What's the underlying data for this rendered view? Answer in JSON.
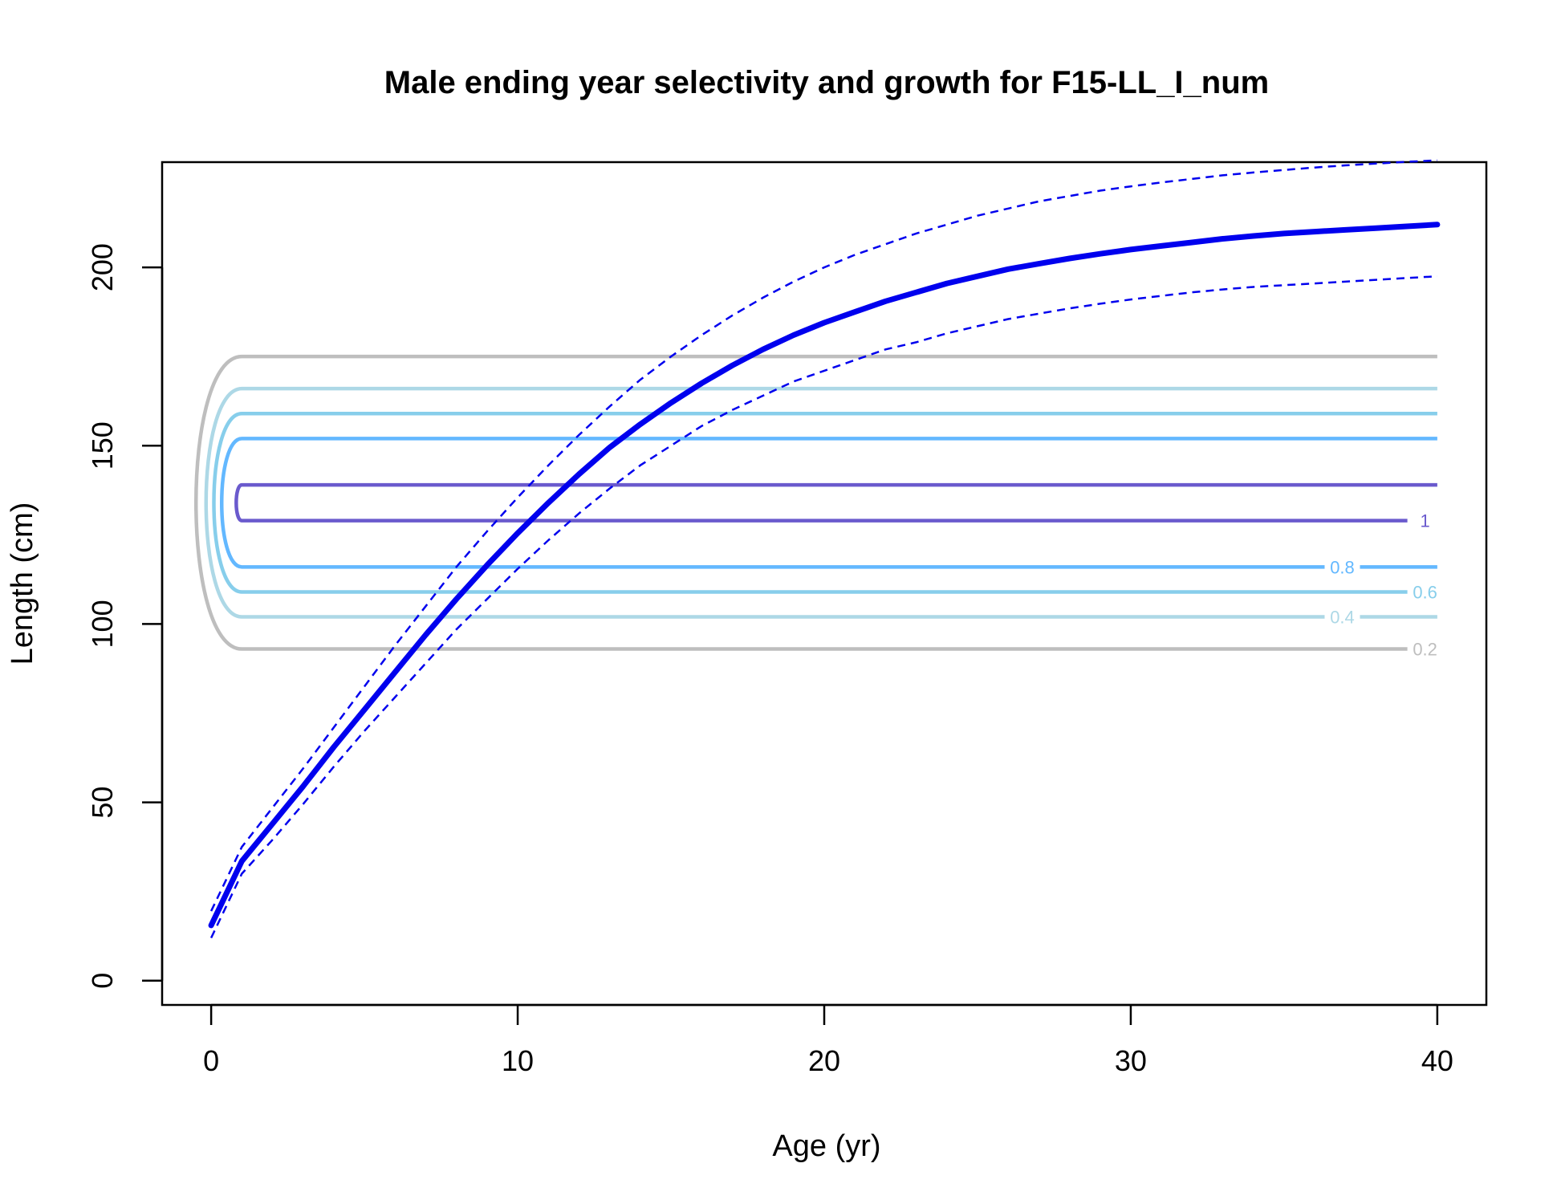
{
  "chart_data": {
    "type": "line",
    "title": "Male ending year selectivity and growth for F15-LL_I_num",
    "xlabel": "Age (yr)",
    "ylabel": "Length (cm)",
    "xlim": [
      -1.6,
      41.6
    ],
    "ylim": [
      -6.8,
      229.5
    ],
    "xticks": [
      0,
      10,
      20,
      30,
      40
    ],
    "yticks": [
      0,
      50,
      100,
      150,
      200
    ],
    "grid": false,
    "growth": {
      "color": "#0000ee",
      "mean": {
        "x": [
          0,
          1,
          2,
          3,
          4,
          5,
          6,
          7,
          8,
          9,
          10,
          11,
          12,
          13,
          14,
          15,
          16,
          17,
          18,
          19,
          20,
          21,
          22,
          23,
          24,
          25,
          26,
          27,
          28,
          29,
          30,
          31,
          32,
          33,
          34,
          35,
          36,
          37,
          38,
          39,
          40
        ],
        "y": [
          15.5,
          33.5,
          44,
          54.5,
          65.5,
          76,
          86.5,
          97,
          107,
          116.5,
          125.5,
          134,
          142,
          149.5,
          156,
          162,
          167.5,
          172.5,
          177,
          181,
          184.5,
          187.5,
          190.5,
          193,
          195.5,
          197.5,
          199.5,
          201,
          202.5,
          203.8,
          205,
          206,
          207,
          208,
          208.8,
          209.5,
          210,
          210.5,
          211,
          211.5,
          212
        ]
      },
      "upper": {
        "x": [
          0,
          1,
          2,
          3,
          4,
          5,
          6,
          7,
          8,
          9,
          10,
          11,
          12,
          13,
          14,
          15,
          16,
          17,
          18,
          19,
          20,
          21,
          22,
          23,
          24,
          25,
          26,
          27,
          28,
          29,
          30,
          31,
          32,
          33,
          34,
          35,
          36,
          37,
          38,
          39,
          40
        ],
        "y": [
          19.5,
          37.5,
          48.5,
          59.5,
          71,
          82.5,
          94,
          105,
          116,
          126,
          135.5,
          144.5,
          153,
          161,
          168.5,
          175,
          181,
          186.5,
          191.5,
          196,
          200,
          203.5,
          206.5,
          209.5,
          212,
          214.5,
          216.5,
          218.5,
          220,
          221.5,
          222.7,
          223.8,
          224.8,
          225.8,
          226.6,
          227.3,
          228,
          228.6,
          229.1,
          229.6,
          230
        ]
      },
      "lower": {
        "x": [
          0,
          1,
          2,
          3,
          4,
          5,
          6,
          7,
          8,
          9,
          10,
          11,
          12,
          13,
          14,
          15,
          16,
          17,
          18,
          19,
          20,
          21,
          22,
          23,
          24,
          25,
          26,
          27,
          28,
          29,
          30,
          31,
          32,
          33,
          34,
          35,
          36,
          37,
          38,
          39,
          40
        ],
        "y": [
          12,
          30,
          39.5,
          49.5,
          60,
          70,
          79.5,
          89,
          98.5,
          107,
          115.5,
          123.5,
          131,
          138,
          144.5,
          150,
          155.5,
          160,
          164,
          168,
          171,
          174,
          177,
          179,
          181.5,
          183.5,
          185.5,
          187,
          188.5,
          189.8,
          191,
          192,
          193,
          193.8,
          194.5,
          195,
          195.5,
          196,
          196.5,
          197,
          197.5
        ]
      }
    },
    "selectivity_contours": [
      {
        "level": 0.2,
        "color": "#bebebe",
        "y_low": 93,
        "y_high": 175,
        "label": "0.2"
      },
      {
        "level": 0.4,
        "color": "#add8e6",
        "y_low": 102,
        "y_high": 166,
        "label": "0.4"
      },
      {
        "level": 0.6,
        "color": "#87ceeb",
        "y_low": 109,
        "y_high": 159,
        "label": "0.6"
      },
      {
        "level": 0.8,
        "color": "#63b8ff",
        "y_low": 116,
        "y_high": 152,
        "label": "0.8"
      },
      {
        "level": 1,
        "color": "#6a5acd",
        "y_low": 129,
        "y_high": 139,
        "label": "1"
      }
    ]
  }
}
